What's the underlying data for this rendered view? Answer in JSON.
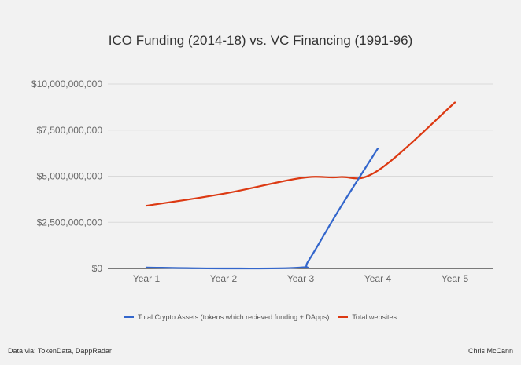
{
  "chart_data": {
    "type": "line",
    "title": "ICO Funding (2014-18) vs. VC Financing (1991-96)",
    "categories": [
      "Year 1",
      "Year 2",
      "Year 3",
      "Year 4",
      "Year 5"
    ],
    "y_tick_labels": [
      "$0",
      "$2,500,000,000",
      "$5,000,000,000",
      "$7,500,000,000",
      "$10,000,000,000"
    ],
    "ylim": [
      0,
      10000000000
    ],
    "grid": true,
    "legend_position": "bottom",
    "series": [
      {
        "name": "Total Crypto Assets (tokens which recieved funding + DApps)",
        "color": "#3366cc",
        "x": [
          1,
          2,
          3,
          3.1,
          3.5,
          4
        ],
        "values": [
          50000000,
          0,
          50000000,
          400000000,
          3200000000,
          6500000000
        ]
      },
      {
        "name": "Total websites",
        "color": "#dc3912",
        "x": [
          1,
          2,
          3,
          3.5,
          4,
          5
        ],
        "values": [
          3400000000,
          4050000000,
          4900000000,
          4950000000,
          5300000000,
          9000000000
        ]
      }
    ]
  },
  "footer": {
    "source": "Data via: TokenData, DappRadar",
    "author": "Chris McCann"
  }
}
